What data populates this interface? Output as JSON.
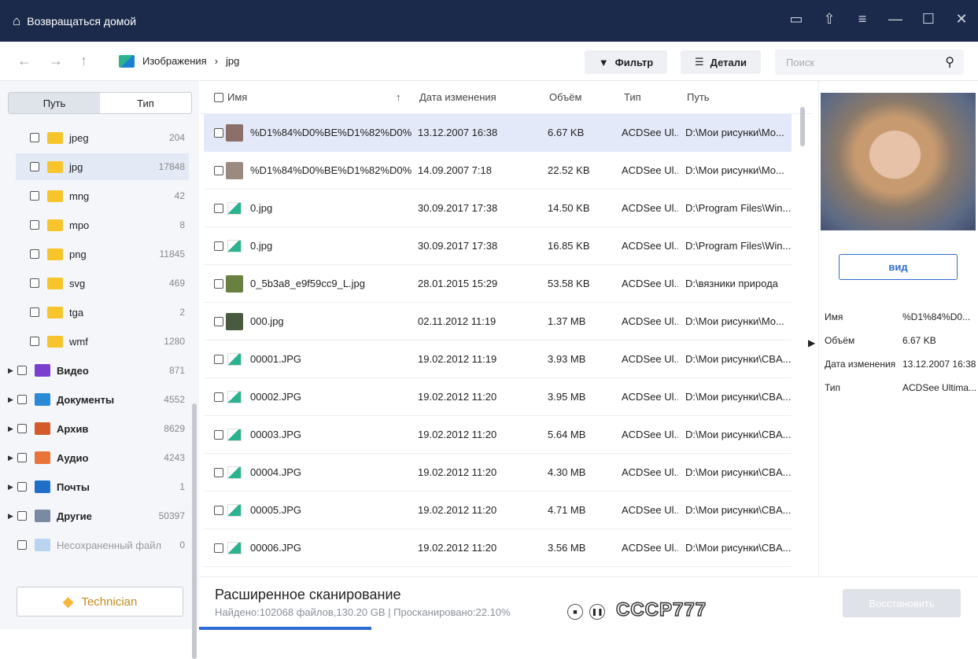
{
  "titlebar": {
    "home_label": "Возвращаться домой"
  },
  "nav": {
    "breadcrumb": [
      "Изображения",
      "jpg"
    ],
    "filter_label": "Фильтр",
    "details_label": "Детали",
    "search_placeholder": "Поиск"
  },
  "sidebar": {
    "tabs": [
      "Путь",
      "Тип"
    ],
    "active_tab": "Тип",
    "items": [
      {
        "label": "jpeg",
        "count": "204",
        "kind": "folder"
      },
      {
        "label": "jpg",
        "count": "17848",
        "kind": "folder",
        "selected": true
      },
      {
        "label": "mng",
        "count": "42",
        "kind": "folder"
      },
      {
        "label": "mpo",
        "count": "8",
        "kind": "folder"
      },
      {
        "label": "png",
        "count": "11845",
        "kind": "folder"
      },
      {
        "label": "svg",
        "count": "469",
        "kind": "folder"
      },
      {
        "label": "tga",
        "count": "2",
        "kind": "folder"
      },
      {
        "label": "wmf",
        "count": "1280",
        "kind": "folder"
      },
      {
        "label": "Видео",
        "count": "871",
        "kind": "video",
        "color": "#7b3fd0"
      },
      {
        "label": "Документы",
        "count": "4552",
        "kind": "documents",
        "color": "#2a8ad6"
      },
      {
        "label": "Архив",
        "count": "8629",
        "kind": "archive",
        "color": "#d45a2a"
      },
      {
        "label": "Аудио",
        "count": "4243",
        "kind": "audio",
        "color": "#e8743a"
      },
      {
        "label": "Почты",
        "count": "1",
        "kind": "mail",
        "color": "#1f6fc9"
      },
      {
        "label": "Другие",
        "count": "50397",
        "kind": "other",
        "color": "#7a8aa0"
      },
      {
        "label": "Несохраненный файл",
        "count": "0",
        "kind": "unsaved",
        "color": "#b9d4f0"
      }
    ],
    "technician_label": "Technician"
  },
  "table": {
    "columns": [
      "Имя",
      "Дата изменения",
      "Объём",
      "Тип",
      "Путь"
    ],
    "rows": [
      {
        "name": "%D1%84%D0%BE%D1%82%D0%...",
        "date": "13.12.2007 16:38",
        "size": "6.67 KB",
        "type": "ACDSee Ul...",
        "path": "D:\\Мои рисунки\\Mo...",
        "selected": true
      },
      {
        "name": "%D1%84%D0%BE%D1%82%D0%...",
        "date": "14.09.2007 7:18",
        "size": "22.52 KB",
        "type": "ACDSee Ul...",
        "path": "D:\\Мои рисунки\\Mo..."
      },
      {
        "name": "0.jpg",
        "date": "30.09.2017 17:38",
        "size": "14.50 KB",
        "type": "ACDSee Ul...",
        "path": "D:\\Program Files\\Win..."
      },
      {
        "name": "0.jpg",
        "date": "30.09.2017 17:38",
        "size": "16.85 KB",
        "type": "ACDSee Ul...",
        "path": "D:\\Program Files\\Win..."
      },
      {
        "name": "0_5b3a8_e9f59cc9_L.jpg",
        "date": "28.01.2015 15:29",
        "size": "53.58 KB",
        "type": "ACDSee Ul...",
        "path": "D:\\вязники природа"
      },
      {
        "name": "000.jpg",
        "date": "02.11.2012 11:19",
        "size": "1.37 MB",
        "type": "ACDSee Ul...",
        "path": "D:\\Мои рисунки\\Mo..."
      },
      {
        "name": "00001.JPG",
        "date": "19.02.2012 11:19",
        "size": "3.93 MB",
        "type": "ACDSee Ul...",
        "path": "D:\\Мои рисунки\\CBA..."
      },
      {
        "name": "00002.JPG",
        "date": "19.02.2012 11:20",
        "size": "3.95 MB",
        "type": "ACDSee Ul...",
        "path": "D:\\Мои рисунки\\CBA..."
      },
      {
        "name": "00003.JPG",
        "date": "19.02.2012 11:20",
        "size": "5.64 MB",
        "type": "ACDSee Ul...",
        "path": "D:\\Мои рисунки\\CBA..."
      },
      {
        "name": "00004.JPG",
        "date": "19.02.2012 11:20",
        "size": "4.30 MB",
        "type": "ACDSee Ul...",
        "path": "D:\\Мои рисунки\\CBA..."
      },
      {
        "name": "00005.JPG",
        "date": "19.02.2012 11:20",
        "size": "4.71 MB",
        "type": "ACDSee Ul...",
        "path": "D:\\Мои рисунки\\CBA..."
      },
      {
        "name": "00006.JPG",
        "date": "19.02.2012 11:20",
        "size": "3.56 MB",
        "type": "ACDSee Ul...",
        "path": "D:\\Мои рисунки\\CBA..."
      }
    ]
  },
  "preview": {
    "view_label": "вид",
    "props": [
      {
        "label": "Имя",
        "value": "%D1%84%D0..."
      },
      {
        "label": "Объём",
        "value": "6.67 KB"
      },
      {
        "label": "Дата изменения",
        "value": "13.12.2007 16:38"
      },
      {
        "label": "Тип",
        "value": "ACDSee Ultima..."
      }
    ]
  },
  "bottom": {
    "title": "Расширенное сканирование",
    "status": "Найдено:102068 файлов,130.20 GB | Просканировано:22.10%",
    "progress_percent": 22.1,
    "restore_label": "Восстановить",
    "watermark": "СССР777"
  },
  "colors": {
    "accent": "#2d6bd6",
    "titlebar": "#1b2a4a",
    "folder": "#f7c52b"
  }
}
